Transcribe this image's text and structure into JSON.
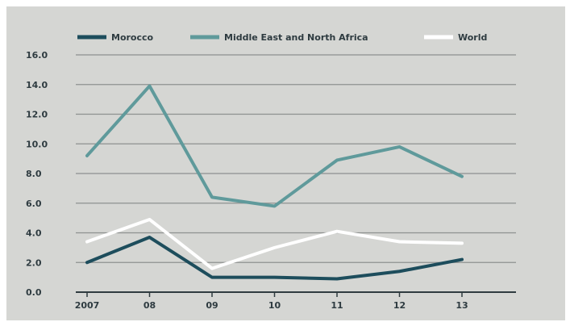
{
  "colors": {
    "panel_bg": "#d5d6d3",
    "grid": "#8e9190",
    "axis": "#2f3b3f",
    "text": "#2e3b40",
    "morocco": "#1d4d5c",
    "mena": "#5f9a9b",
    "world": "#ffffff"
  },
  "chart_data": {
    "type": "line",
    "title": "",
    "xlabel": "",
    "ylabel": "",
    "categories": [
      "2007",
      "08",
      "09",
      "10",
      "11",
      "12",
      "13"
    ],
    "ylim": [
      0,
      16
    ],
    "yticks": [
      "0.0",
      "2.0",
      "4.0",
      "6.0",
      "8.0",
      "10.0",
      "12.0",
      "14.0",
      "16.0"
    ],
    "grid": true,
    "legend_position": "top",
    "series": [
      {
        "name": "Morocco",
        "color": "#1d4d5c",
        "values": [
          2.0,
          3.7,
          1.0,
          1.0,
          0.9,
          1.4,
          2.2
        ]
      },
      {
        "name": "Middle East and North Africa",
        "color": "#5f9a9b",
        "values": [
          9.2,
          13.9,
          6.4,
          5.8,
          8.9,
          9.8,
          7.8
        ]
      },
      {
        "name": "World",
        "color": "#ffffff",
        "values": [
          3.4,
          4.9,
          1.6,
          3.0,
          4.1,
          3.4,
          3.3
        ]
      }
    ]
  }
}
